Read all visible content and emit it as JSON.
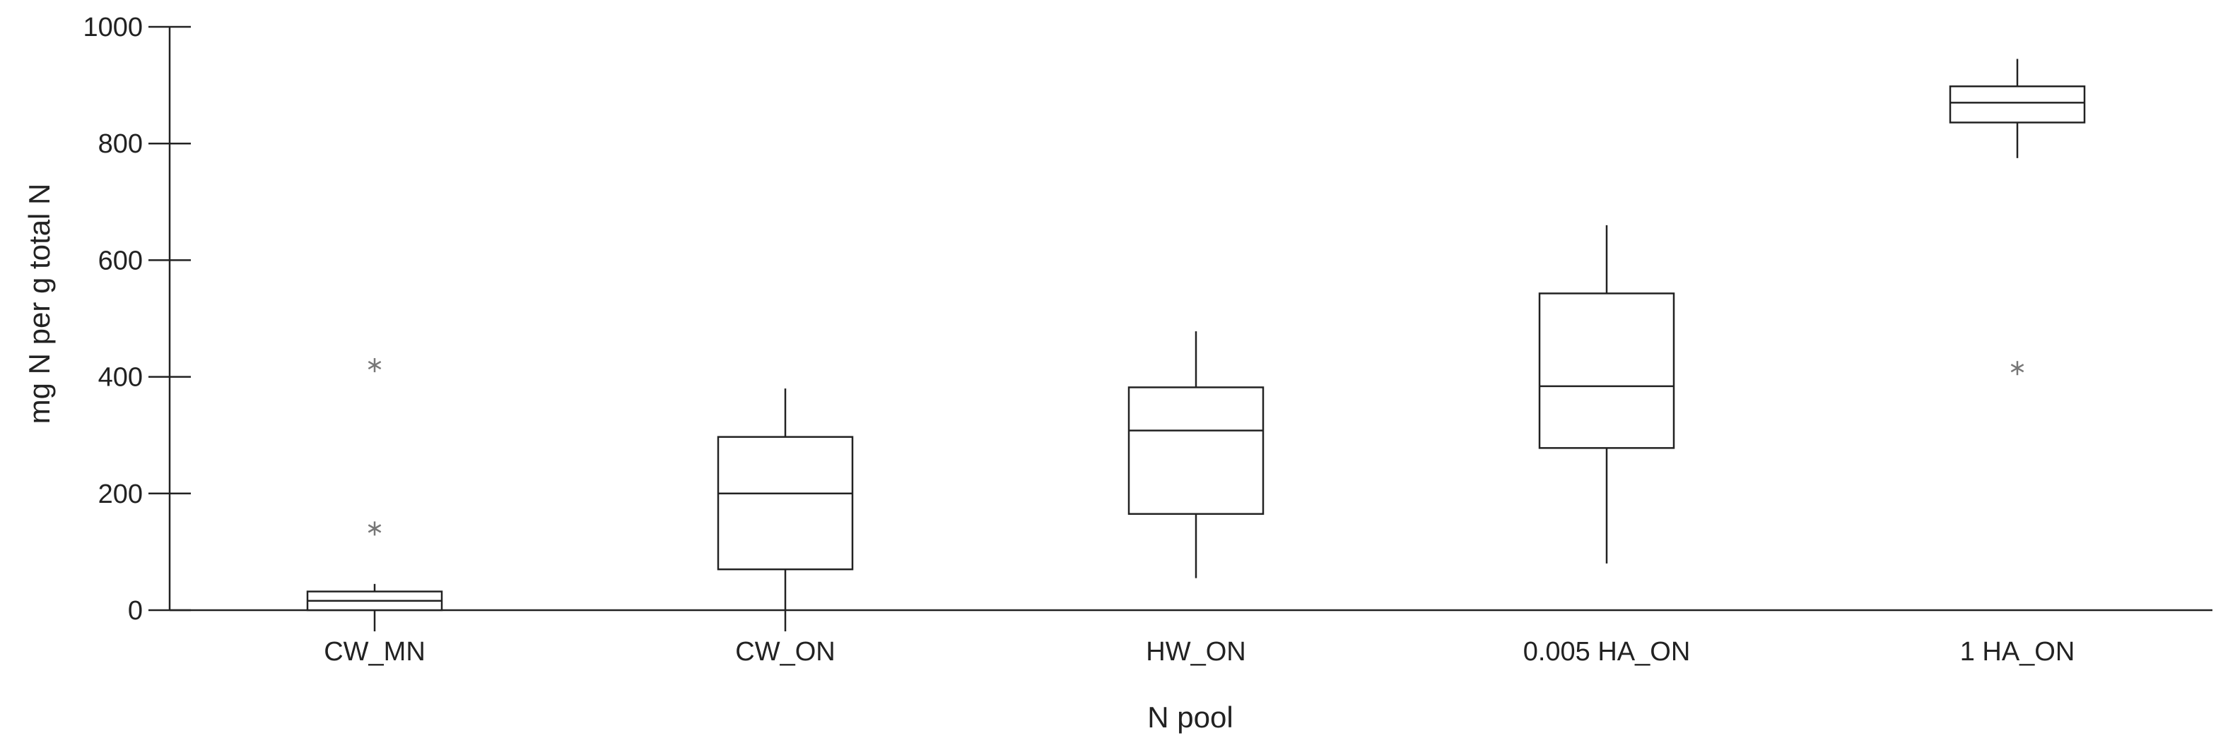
{
  "chart_data": {
    "type": "box",
    "title": "",
    "xlabel": "N pool",
    "ylabel": "mg N per g total N",
    "ylim": [
      0,
      1000
    ],
    "yticks": [
      0,
      200,
      400,
      600,
      800,
      1000
    ],
    "ytick_labels": [
      "0",
      "200",
      "400",
      "600",
      "800",
      "1000"
    ],
    "grid": false,
    "legend": "none",
    "categories": [
      "CW_MN",
      "CW_ON",
      "HW_ON",
      "0.005 HA_ON",
      "1 HA_ON"
    ],
    "boxes": [
      {
        "category": "CW_MN",
        "whisker_low": 0,
        "q1": 0,
        "median": 16,
        "q3": 32,
        "whisker_high": 45,
        "outliers": [
          140,
          420
        ]
      },
      {
        "category": "CW_ON",
        "whisker_low": 0,
        "q1": 70,
        "median": 200,
        "q3": 297,
        "whisker_high": 380,
        "outliers": []
      },
      {
        "category": "HW_ON",
        "whisker_low": 55,
        "q1": 165,
        "median": 308,
        "q3": 382,
        "whisker_high": 478,
        "outliers": []
      },
      {
        "category": "0.005 HA_ON",
        "whisker_low": 80,
        "q1": 278,
        "median": 384,
        "q3": 543,
        "whisker_high": 660,
        "outliers": []
      },
      {
        "category": "1 HA_ON",
        "whisker_low": 775,
        "q1": 836,
        "median": 870,
        "q3": 898,
        "whisker_high": 945,
        "outliers": [
          415
        ]
      }
    ],
    "colors": {
      "line": "#222222",
      "outlier": "#777777",
      "box_fill": "#ffffff"
    }
  }
}
